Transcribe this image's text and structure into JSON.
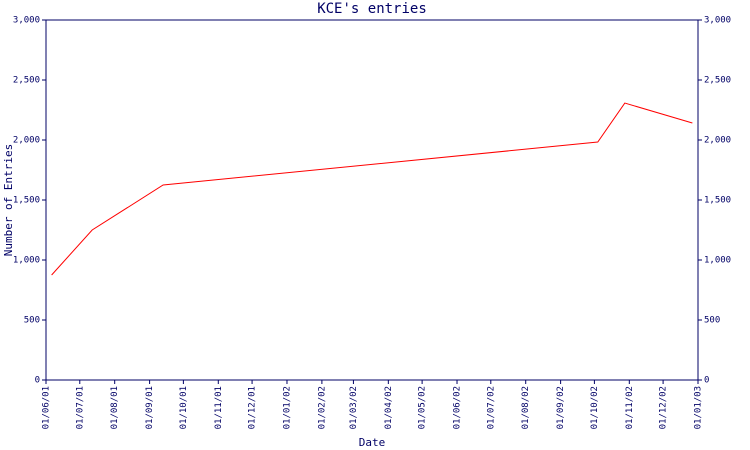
{
  "chart_data": {
    "type": "line",
    "title": "KCE's entries",
    "x_label": "Date",
    "y_label": "Number of Entries",
    "x": [
      "06/06/01",
      "12/07/01",
      "13/09/01",
      "04/10/02",
      "28/10/02",
      "27/12/02"
    ],
    "series": [
      {
        "name": "KCE",
        "color": "#ff0000",
        "values": [
          875,
          1250,
          1625,
          1983,
          2308,
          2142
        ]
      }
    ],
    "xlim": [
      "01/06/01",
      "01/01/03"
    ],
    "xticks": [
      "01/06/01",
      "01/07/01",
      "01/08/01",
      "01/09/01",
      "01/10/01",
      "01/11/01",
      "01/12/01",
      "01/01/02",
      "01/02/02",
      "01/03/02",
      "01/04/02",
      "01/05/02",
      "01/06/02",
      "01/07/02",
      "01/08/02",
      "01/09/02",
      "01/10/02",
      "01/11/02",
      "01/12/02",
      "01/01/03"
    ],
    "ylim": [
      0,
      3000
    ],
    "yticks": [
      0,
      500,
      {
        "value": 1000,
        "label": "1,000"
      },
      {
        "value": 1500,
        "label": "1,500"
      },
      {
        "value": 2000,
        "label": "2,000"
      },
      {
        "value": 2500,
        "label": "2,500"
      },
      {
        "value": 3000,
        "label": "3,000"
      }
    ],
    "axis_color": "#000066",
    "right_axis": true
  }
}
